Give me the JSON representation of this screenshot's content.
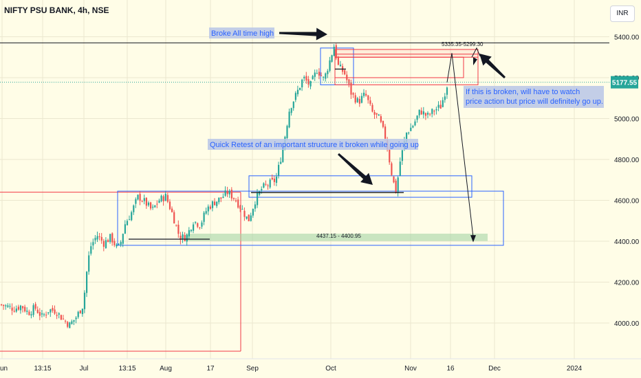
{
  "symbol_title": "NIFTY PSU BANK, 4h, NSE",
  "currency_button": "INR",
  "price_tag": "5177.55",
  "colors": {
    "up": "#26a69a",
    "down": "#ef5350",
    "note_bg": "#b9c6e6",
    "note_text": "#2962ff",
    "box_blue": "#2962ff",
    "box_red": "#f23645",
    "zone_green": "#a5d6a7"
  },
  "chart_data": {
    "type": "candlestick",
    "ylim": [
      3860,
      5490
    ],
    "y_ticks": [
      4000,
      4200,
      4400,
      4600,
      4800,
      5000,
      5200,
      5400
    ],
    "y_tick_labels": [
      "4000.00",
      "4200.00",
      "4400.00",
      "4600.00",
      "4800.00",
      "5000.00",
      "5200.00",
      "5400.00"
    ],
    "x_tick_labels": [
      "Jun",
      "13:15",
      "Jul",
      "13:15",
      "Aug",
      "17",
      "Sep",
      "Oct",
      "Nov",
      "16",
      "Dec",
      "2024"
    ],
    "last_price": 5177.55,
    "all_time_high_line": 5370,
    "close_path": [
      [
        0,
        4090
      ],
      [
        10,
        4080
      ],
      [
        20,
        4070
      ],
      [
        30,
        4085
      ],
      [
        40,
        4050
      ],
      [
        50,
        4075
      ],
      [
        60,
        4030
      ],
      [
        70,
        4065
      ],
      [
        80,
        4060
      ],
      [
        90,
        4020
      ],
      [
        100,
        3990
      ],
      [
        110,
        4030
      ],
      [
        120,
        4090
      ],
      [
        125,
        4250
      ],
      [
        130,
        4370
      ],
      [
        140,
        4430
      ],
      [
        150,
        4390
      ],
      [
        160,
        4420
      ],
      [
        170,
        4360
      ],
      [
        175,
        4400
      ],
      [
        180,
        4480
      ],
      [
        190,
        4540
      ],
      [
        200,
        4620
      ],
      [
        210,
        4590
      ],
      [
        220,
        4550
      ],
      [
        230,
        4600
      ],
      [
        240,
        4620
      ],
      [
        250,
        4530
      ],
      [
        260,
        4420
      ],
      [
        270,
        4420
      ],
      [
        280,
        4500
      ],
      [
        290,
        4480
      ],
      [
        300,
        4560
      ],
      [
        310,
        4590
      ],
      [
        320,
        4610
      ],
      [
        330,
        4640
      ],
      [
        340,
        4610
      ],
      [
        350,
        4560
      ],
      [
        360,
        4500
      ],
      [
        370,
        4600
      ],
      [
        380,
        4660
      ],
      [
        390,
        4680
      ],
      [
        400,
        4700
      ],
      [
        410,
        4850
      ],
      [
        420,
        5050
      ],
      [
        430,
        5120
      ],
      [
        440,
        5200
      ],
      [
        450,
        5160
      ],
      [
        460,
        5240
      ],
      [
        470,
        5190
      ],
      [
        480,
        5300
      ],
      [
        485,
        5360
      ],
      [
        490,
        5260
      ],
      [
        500,
        5220
      ],
      [
        510,
        5120
      ],
      [
        520,
        5080
      ],
      [
        530,
        5120
      ],
      [
        540,
        5030
      ],
      [
        550,
        5000
      ],
      [
        560,
        4900
      ],
      [
        570,
        4700
      ],
      [
        575,
        4640
      ],
      [
        580,
        4780
      ],
      [
        590,
        4930
      ],
      [
        600,
        4970
      ],
      [
        610,
        5040
      ],
      [
        620,
        5010
      ],
      [
        630,
        5040
      ],
      [
        640,
        5060
      ],
      [
        650,
        5177
      ]
    ],
    "annotations": [
      {
        "text": "Broke All time high"
      },
      {
        "text": "Quick Retest of an important structure it broken while going up"
      },
      {
        "text": "If this is broken, will have to watch price action but price will definitely go up."
      },
      {
        "text": "5335.35-5299.30"
      },
      {
        "text": "4437.15 - 4400.95"
      }
    ]
  }
}
